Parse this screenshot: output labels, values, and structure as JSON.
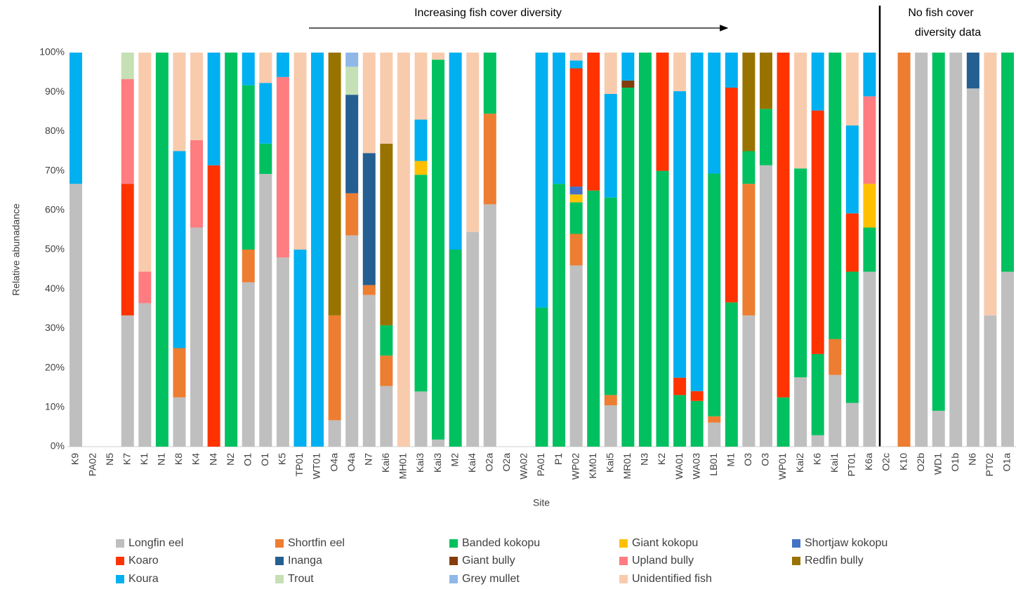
{
  "chart_data": {
    "type": "stacked_bar",
    "x_label": "Site",
    "y_label": "Relative abunadance",
    "annotations": [
      "Increasing fish cover diversity",
      [
        "No fish cover",
        "diversity data"
      ]
    ],
    "categories": [
      "K9",
      "PA02",
      "N5",
      "K7",
      "K1",
      "N1",
      "K8",
      "K4",
      "N4",
      "N2",
      "O1",
      "O1",
      "K5",
      "TP01",
      "WT01",
      "O4a",
      "O4a",
      "N7",
      "Kai6",
      "MH01",
      "Kai3",
      "Kai3",
      "M2",
      "Kai4",
      "O2a",
      "O2a",
      "WA02",
      "PA01",
      "P1",
      "WP02",
      "KM01",
      "Kai5",
      "MR01",
      "N3",
      "K2",
      "WA01",
      "WA03",
      "LB01",
      "M1",
      "O3",
      "O3",
      "WP01",
      "Kai2",
      "K6",
      "Kai1",
      "PT01",
      "K6a",
      "O2c",
      "K10",
      "O2b",
      "WD1",
      "O1b",
      "N6",
      "PT02",
      "O1a"
    ],
    "ylim": [
      0,
      100
    ],
    "yticks": [
      {
        "value": 0,
        "label": "0%"
      },
      {
        "value": 10,
        "label": "10%"
      },
      {
        "value": 20,
        "label": "20%"
      },
      {
        "value": 30,
        "label": "30%"
      },
      {
        "value": 40,
        "label": "40%"
      },
      {
        "value": 50,
        "label": "50%"
      },
      {
        "value": 60,
        "label": "60%"
      },
      {
        "value": 70,
        "label": "70%"
      },
      {
        "value": 80,
        "label": "80%"
      },
      {
        "value": 90,
        "label": "90%"
      },
      {
        "value": 100,
        "label": "100%"
      }
    ],
    "grid": false,
    "legend": "bottom",
    "series": [
      {
        "name": "Longfin eel",
        "color": "#BFBFBF",
        "values": [
          66.7,
          null,
          null,
          33.3,
          36.4,
          0,
          12.5,
          55.6,
          0,
          0,
          41.7,
          69.2,
          48,
          0,
          0,
          6.7,
          53.6,
          38.5,
          15.4,
          0,
          14,
          1.8,
          0,
          54.5,
          61.5,
          null,
          null,
          0,
          0,
          46,
          0,
          10.5,
          0,
          0,
          0,
          0,
          0,
          6.1,
          0,
          33.3,
          71.4,
          0,
          17.6,
          2.9,
          18.2,
          11.1,
          44.4,
          null,
          0,
          100,
          9.1,
          100,
          90.9,
          33.3,
          44.4
        ]
      },
      {
        "name": "Shortfin eel",
        "color": "#ED7D31",
        "values": [
          0,
          null,
          null,
          0,
          0,
          0,
          12.5,
          0,
          0,
          0,
          8.3,
          0,
          0,
          0,
          0,
          26.6,
          10.7,
          2.5,
          7.7,
          0,
          0,
          0,
          0,
          0,
          23,
          null,
          null,
          0,
          0,
          8,
          0,
          2.6,
          0,
          0,
          0,
          0,
          0,
          1.6,
          0,
          33.4,
          0,
          0,
          0,
          0,
          9.1,
          0,
          0,
          null,
          100,
          0,
          0,
          0,
          0,
          0,
          0
        ]
      },
      {
        "name": "Banded kokopu",
        "color": "#00C060",
        "values": [
          0,
          null,
          null,
          0,
          0,
          100,
          0,
          0,
          0,
          100,
          41.7,
          7.7,
          0,
          0,
          0,
          0,
          0,
          0,
          7.7,
          0,
          55,
          96.4,
          50,
          0,
          15.5,
          null,
          null,
          35.3,
          66.7,
          8,
          65,
          50.1,
          91.1,
          100,
          70,
          13.1,
          11.6,
          61.6,
          36.6,
          8.3,
          14.3,
          12.5,
          53,
          20.6,
          72.7,
          33.3,
          11.2,
          null,
          0,
          0,
          90.9,
          0,
          0,
          0,
          55.6
        ]
      },
      {
        "name": "Giant kokopu",
        "color": "#FFC000",
        "values": [
          0,
          null,
          null,
          0,
          0,
          0,
          0,
          0,
          0,
          0,
          0,
          0,
          0,
          0,
          0,
          0,
          0,
          0,
          0,
          0,
          3.5,
          0,
          0,
          0,
          0,
          null,
          null,
          0,
          0,
          2,
          0,
          0,
          0,
          0,
          0,
          0,
          0,
          0,
          0,
          0,
          0,
          0,
          0,
          0,
          0,
          0,
          11.1,
          null,
          0,
          0,
          0,
          0,
          0,
          0,
          0
        ]
      },
      {
        "name": "Shortjaw kokopu",
        "color": "#4472C4",
        "values": [
          0,
          null,
          null,
          0,
          0,
          0,
          0,
          0,
          0,
          0,
          0,
          0,
          0,
          0,
          0,
          0,
          0,
          0,
          0,
          0,
          0,
          0,
          0,
          0,
          0,
          null,
          null,
          0,
          0,
          2,
          0,
          0,
          0,
          0,
          0,
          0,
          0,
          0,
          0,
          0,
          0,
          0,
          0,
          0,
          0,
          0,
          0,
          null,
          0,
          0,
          0,
          0,
          0,
          0,
          0
        ]
      },
      {
        "name": "Koaro",
        "color": "#FF3300",
        "values": [
          0,
          null,
          null,
          33.4,
          0,
          0,
          0,
          0,
          71.4,
          0,
          0,
          0,
          0,
          0,
          0,
          0,
          0,
          0,
          0,
          0,
          0,
          0,
          0,
          0,
          0,
          null,
          null,
          0,
          0,
          30,
          35,
          0,
          0,
          0,
          30,
          4.4,
          2.5,
          0,
          54.5,
          0,
          0,
          87.5,
          0,
          61.8,
          0,
          14.8,
          0,
          null,
          0,
          0,
          0,
          0,
          0,
          0,
          0
        ]
      },
      {
        "name": "Inanga",
        "color": "#255E91",
        "values": [
          0,
          null,
          null,
          0,
          0,
          0,
          0,
          0,
          0,
          0,
          0,
          0,
          0,
          0,
          0,
          0,
          25,
          33.5,
          0,
          0,
          0,
          0,
          0,
          0,
          0,
          null,
          null,
          0,
          0,
          0,
          0,
          0,
          0,
          0,
          0,
          0,
          0,
          0,
          0,
          0,
          0,
          0,
          0,
          0,
          0,
          0,
          0,
          null,
          0,
          0,
          0,
          0,
          9.1,
          0,
          0
        ]
      },
      {
        "name": "Giant bully",
        "color": "#843C0C",
        "values": [
          0,
          null,
          null,
          0,
          0,
          0,
          0,
          0,
          0,
          0,
          0,
          0,
          0,
          0,
          0,
          0,
          0,
          0,
          0,
          0,
          0,
          0,
          0,
          0,
          0,
          null,
          null,
          0,
          0,
          0,
          0,
          0,
          1.8,
          0,
          0,
          0,
          0,
          0,
          0,
          0,
          0,
          0,
          0,
          0,
          0,
          0,
          0,
          null,
          0,
          0,
          0,
          0,
          0,
          0,
          0
        ]
      },
      {
        "name": "Upland bully",
        "color": "#FF7C80",
        "values": [
          0,
          null,
          null,
          26.6,
          8,
          0,
          0,
          22.2,
          0,
          0,
          0,
          0,
          45.8,
          0,
          0,
          0,
          0,
          0,
          0,
          0,
          0,
          0,
          0,
          0,
          0,
          null,
          null,
          0,
          0,
          0,
          0,
          0,
          0,
          0,
          0,
          0,
          0,
          0,
          0,
          0,
          0,
          0,
          0,
          0,
          0,
          0,
          22.2,
          null,
          0,
          0,
          0,
          0,
          0,
          0,
          0
        ]
      },
      {
        "name": "Redfin bully",
        "color": "#997300",
        "values": [
          0,
          null,
          null,
          0,
          0,
          0,
          0,
          0,
          0,
          0,
          0,
          0,
          0,
          0,
          0,
          66.7,
          0,
          0,
          46.1,
          0,
          0,
          0,
          0,
          0,
          0,
          null,
          null,
          0,
          0,
          0,
          0,
          0,
          0,
          0,
          0,
          0,
          0,
          0,
          0,
          25,
          14.3,
          0,
          0,
          0,
          0,
          0,
          0,
          null,
          0,
          0,
          0,
          0,
          0,
          0,
          0
        ]
      },
      {
        "name": "Koura",
        "color": "#00B0F0",
        "values": [
          33.3,
          null,
          null,
          0,
          0,
          0,
          50,
          0,
          28.6,
          0,
          8.3,
          15.4,
          6.2,
          50,
          100,
          0,
          0,
          0,
          0,
          0,
          10.5,
          0,
          50,
          0,
          0,
          null,
          null,
          64.7,
          33.3,
          2,
          0,
          26.3,
          7.1,
          0,
          0,
          72.7,
          85.9,
          30.7,
          8.9,
          0,
          0,
          0,
          0,
          14.7,
          0,
          22.3,
          11.1,
          null,
          0,
          0,
          0,
          0,
          0,
          0,
          0
        ]
      },
      {
        "name": "Trout",
        "color": "#C5E0B4",
        "values": [
          0,
          null,
          null,
          6.7,
          0,
          0,
          0,
          0,
          0,
          0,
          0,
          0,
          0,
          0,
          0,
          0,
          7.1,
          0,
          0,
          0,
          0,
          0,
          0,
          0,
          0,
          null,
          null,
          0,
          0,
          0,
          0,
          0,
          0,
          0,
          0,
          0,
          0,
          0,
          0,
          0,
          0,
          0,
          0,
          0,
          0,
          0,
          0,
          null,
          0,
          0,
          0,
          0,
          0,
          0,
          0
        ]
      },
      {
        "name": "Grey mullet",
        "color": "#8FB8E8",
        "values": [
          0,
          null,
          null,
          0,
          0,
          0,
          0,
          0,
          0,
          0,
          0,
          0,
          0,
          0,
          0,
          0,
          3.6,
          0,
          0,
          0,
          0,
          0,
          0,
          0,
          0,
          null,
          null,
          0,
          0,
          0,
          0,
          0,
          0,
          0,
          0,
          0,
          0,
          0,
          0,
          0,
          0,
          0,
          0,
          0,
          0,
          0,
          0,
          null,
          0,
          0,
          0,
          0,
          0,
          0,
          0
        ]
      },
      {
        "name": "Unidentified fish",
        "color": "#F8CBAD",
        "values": [
          0,
          null,
          null,
          0,
          55.6,
          0,
          25,
          22.2,
          0,
          0,
          0,
          7.7,
          0,
          50,
          0,
          0,
          0,
          25.5,
          23.1,
          100,
          17,
          1.8,
          0,
          45.5,
          0,
          null,
          null,
          0,
          0,
          2,
          0,
          10.5,
          0,
          0,
          0,
          9.8,
          0,
          0,
          0,
          0,
          0,
          0,
          29.4,
          0,
          0,
          18.5,
          0,
          null,
          0,
          0,
          0,
          0,
          0,
          66.7,
          0
        ]
      }
    ]
  }
}
